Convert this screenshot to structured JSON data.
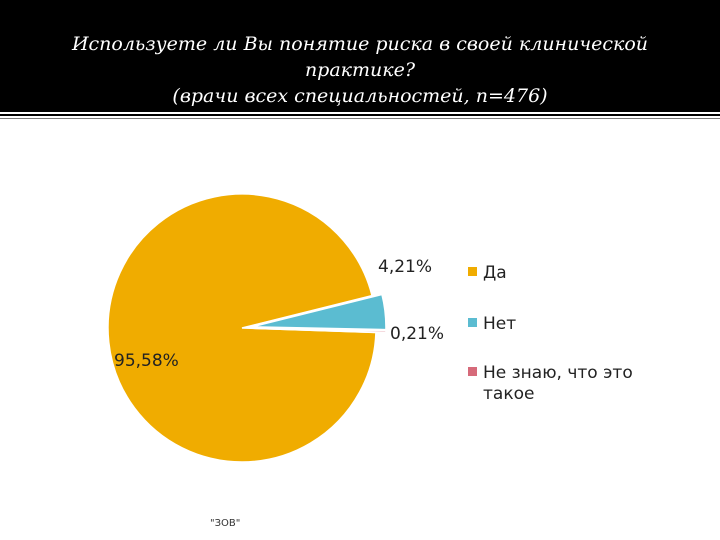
{
  "title": {
    "line1": "Используете ли Вы понятие риска в своей клинической",
    "line2": "практике?",
    "line3": "(врачи всех специальностей, n=476)"
  },
  "chart_data": {
    "type": "pie",
    "categories": [
      "Да",
      "Нет",
      "Не знаю, что это такое"
    ],
    "values": [
      95.58,
      4.21,
      0.21
    ],
    "data_labels": [
      "95,58%",
      "4,21%",
      "0,21%"
    ],
    "colors": [
      "#F0AC00",
      "#5BBCD1",
      "#D66A7A"
    ],
    "exploded": [
      false,
      true,
      true
    ],
    "legend_position": "right",
    "legend": [
      {
        "lines": [
          "Да"
        ]
      },
      {
        "lines": [
          "Нет"
        ]
      },
      {
        "lines": [
          "Не знаю, что это",
          "такое"
        ]
      }
    ]
  },
  "footnote": "\"ЗОВ\""
}
